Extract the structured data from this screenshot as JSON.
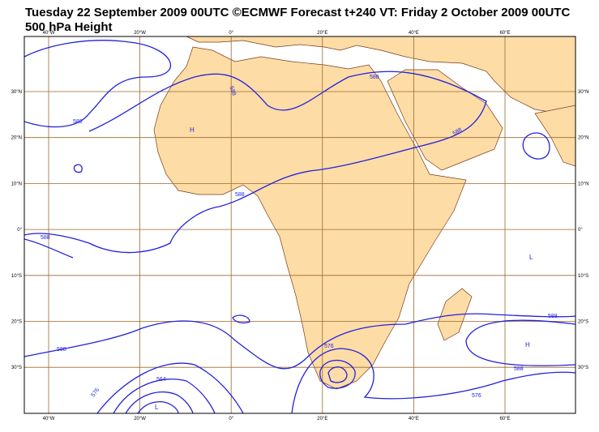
{
  "header": {
    "title": "Tuesday 22 September 2009 00UTC ©ECMWF Forecast t+240 VT: Friday 2 October 2009 00UTC",
    "subtitle": "500 hPa Height"
  },
  "map": {
    "lon_labels": [
      "40°W",
      "20°W",
      "0°",
      "20°E",
      "40°E",
      "60°E"
    ],
    "lat_labels": [
      "30°N",
      "20°N",
      "10°N",
      "0°",
      "10°S",
      "20°S",
      "30°S"
    ],
    "contour_labels": [
      "588",
      "588",
      "588",
      "588",
      "588",
      "588",
      "588",
      "588",
      "588",
      "576",
      "576",
      "576",
      "564"
    ],
    "centres": [
      "H",
      "H",
      "L",
      "L"
    ]
  }
}
